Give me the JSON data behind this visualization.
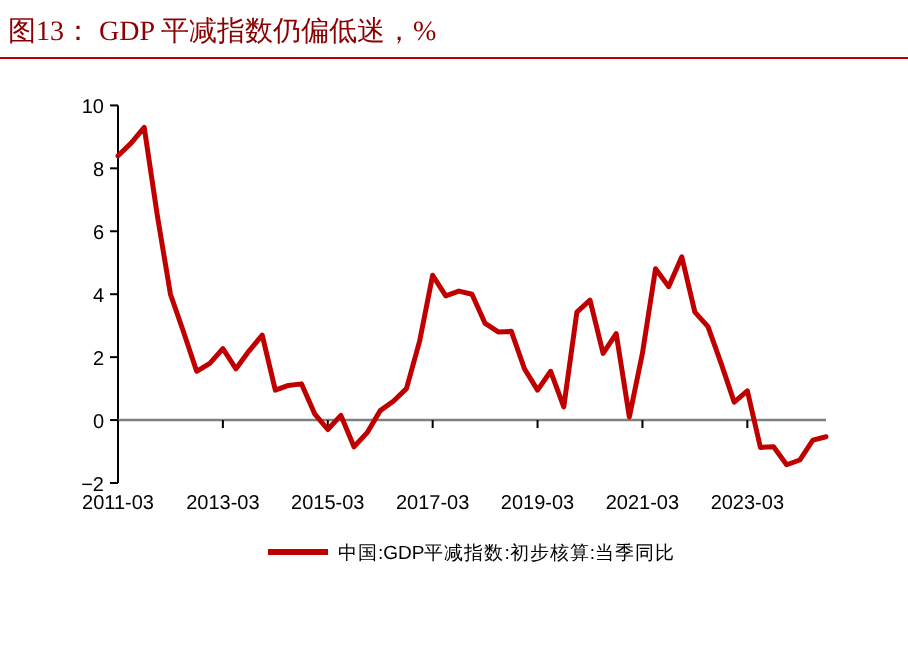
{
  "chart_data": {
    "type": "line",
    "title": "图13：  GDP 平减指数仍偏低迷，%",
    "x": [
      "2011-03",
      "2011-06",
      "2011-09",
      "2011-12",
      "2012-03",
      "2012-06",
      "2012-09",
      "2012-12",
      "2013-03",
      "2013-06",
      "2013-09",
      "2013-12",
      "2014-03",
      "2014-06",
      "2014-09",
      "2014-12",
      "2015-03",
      "2015-06",
      "2015-09",
      "2015-12",
      "2016-03",
      "2016-06",
      "2016-09",
      "2016-12",
      "2017-03",
      "2017-06",
      "2017-09",
      "2017-12",
      "2018-03",
      "2018-06",
      "2018-09",
      "2018-12",
      "2019-03",
      "2019-06",
      "2019-09",
      "2019-12",
      "2020-03",
      "2020-06",
      "2020-09",
      "2020-12",
      "2021-03",
      "2021-06",
      "2021-09",
      "2021-12",
      "2022-03",
      "2022-06",
      "2022-09",
      "2022-12",
      "2023-03",
      "2023-06",
      "2023-09",
      "2023-12",
      "2024-03",
      "2024-06",
      "2024-09"
    ],
    "series": [
      {
        "name": "中国:GDP平减指数:初步核算:当季同比",
        "color": "#c00000",
        "values": [
          8.4,
          8.8,
          9.3,
          6.5,
          4.0,
          2.8,
          1.55,
          1.8,
          2.27,
          1.63,
          2.2,
          2.7,
          0.95,
          1.1,
          1.15,
          0.2,
          -0.3,
          0.15,
          -0.85,
          -0.4,
          0.3,
          0.6,
          1.0,
          2.5,
          4.6,
          3.95,
          4.1,
          4.0,
          3.07,
          2.8,
          2.82,
          1.63,
          0.95,
          1.55,
          0.42,
          3.43,
          3.81,
          2.12,
          2.75,
          0.1,
          2.12,
          4.81,
          4.24,
          5.19,
          3.43,
          2.97,
          1.8,
          0.57,
          0.93,
          -0.87,
          -0.85,
          -1.42,
          -1.27,
          -0.64,
          -0.53
        ]
      }
    ],
    "xlim": [
      "2011-03",
      "2024-09"
    ],
    "xticks": [
      {
        "value": "2011-03",
        "label": "2011-03"
      },
      {
        "value": "2013-03",
        "label": "2013-03"
      },
      {
        "value": "2015-03",
        "label": "2015-03"
      },
      {
        "value": "2017-03",
        "label": "2017-03"
      },
      {
        "value": "2019-03",
        "label": "2019-03"
      },
      {
        "value": "2021-03",
        "label": "2021-03"
      },
      {
        "value": "2023-03",
        "label": "2023-03"
      }
    ],
    "ylim": [
      -2,
      10
    ],
    "yticks": [
      -2,
      0,
      2,
      4,
      6,
      8,
      10
    ],
    "legend": "bottom",
    "marker": "none",
    "line_style": "solid"
  }
}
